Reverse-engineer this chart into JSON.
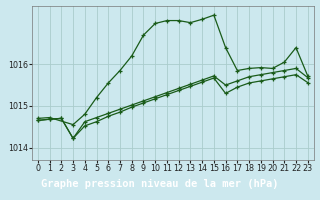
{
  "background_color": "#cce8ee",
  "grid_color": "#aacccc",
  "line_color": "#1a5c1a",
  "title": "Graphe pression niveau de la mer (hPa)",
  "xlim": [
    -0.5,
    23.5
  ],
  "ylim": [
    1013.7,
    1017.4
  ],
  "yticks": [
    1014,
    1015,
    1016
  ],
  "xticks": [
    0,
    1,
    2,
    3,
    4,
    5,
    6,
    7,
    8,
    9,
    10,
    11,
    12,
    13,
    14,
    15,
    16,
    17,
    18,
    19,
    20,
    21,
    22,
    23
  ],
  "series1_x": [
    0,
    1,
    3,
    4,
    5,
    6,
    7,
    8,
    9,
    10,
    11,
    12,
    13,
    14,
    15,
    16,
    17,
    18,
    19,
    20,
    21,
    22,
    23
  ],
  "series1_y": [
    1014.7,
    1014.72,
    1014.55,
    1014.8,
    1015.2,
    1015.55,
    1015.85,
    1016.2,
    1016.7,
    1016.98,
    1017.05,
    1017.05,
    1017.0,
    1017.08,
    1017.18,
    1016.4,
    1015.85,
    1015.9,
    1015.92,
    1015.9,
    1016.05,
    1016.4,
    1015.72
  ],
  "series2_x": [
    0,
    1,
    2,
    3,
    4,
    5,
    6,
    7,
    8,
    9,
    10,
    11,
    12,
    13,
    14,
    15,
    16,
    17,
    18,
    19,
    20,
    21,
    22,
    23
  ],
  "series2_y": [
    1014.65,
    1014.68,
    1014.7,
    1014.22,
    1014.62,
    1014.72,
    1014.82,
    1014.92,
    1015.02,
    1015.12,
    1015.22,
    1015.32,
    1015.42,
    1015.52,
    1015.62,
    1015.72,
    1015.5,
    1015.6,
    1015.7,
    1015.75,
    1015.8,
    1015.85,
    1015.9,
    1015.68
  ],
  "series3_x": [
    0,
    1,
    2,
    3,
    4,
    5,
    6,
    7,
    8,
    9,
    10,
    11,
    12,
    13,
    14,
    15,
    16,
    17,
    18,
    19,
    20,
    21,
    22,
    23
  ],
  "series3_y": [
    1014.65,
    1014.68,
    1014.7,
    1014.22,
    1014.52,
    1014.62,
    1014.75,
    1014.85,
    1014.97,
    1015.07,
    1015.17,
    1015.27,
    1015.37,
    1015.47,
    1015.57,
    1015.67,
    1015.3,
    1015.45,
    1015.55,
    1015.6,
    1015.65,
    1015.7,
    1015.75,
    1015.56
  ],
  "title_fontsize": 7.5,
  "tick_fontsize": 5.8,
  "title_bg": "#3a7a3a",
  "title_color": "#ffffff"
}
